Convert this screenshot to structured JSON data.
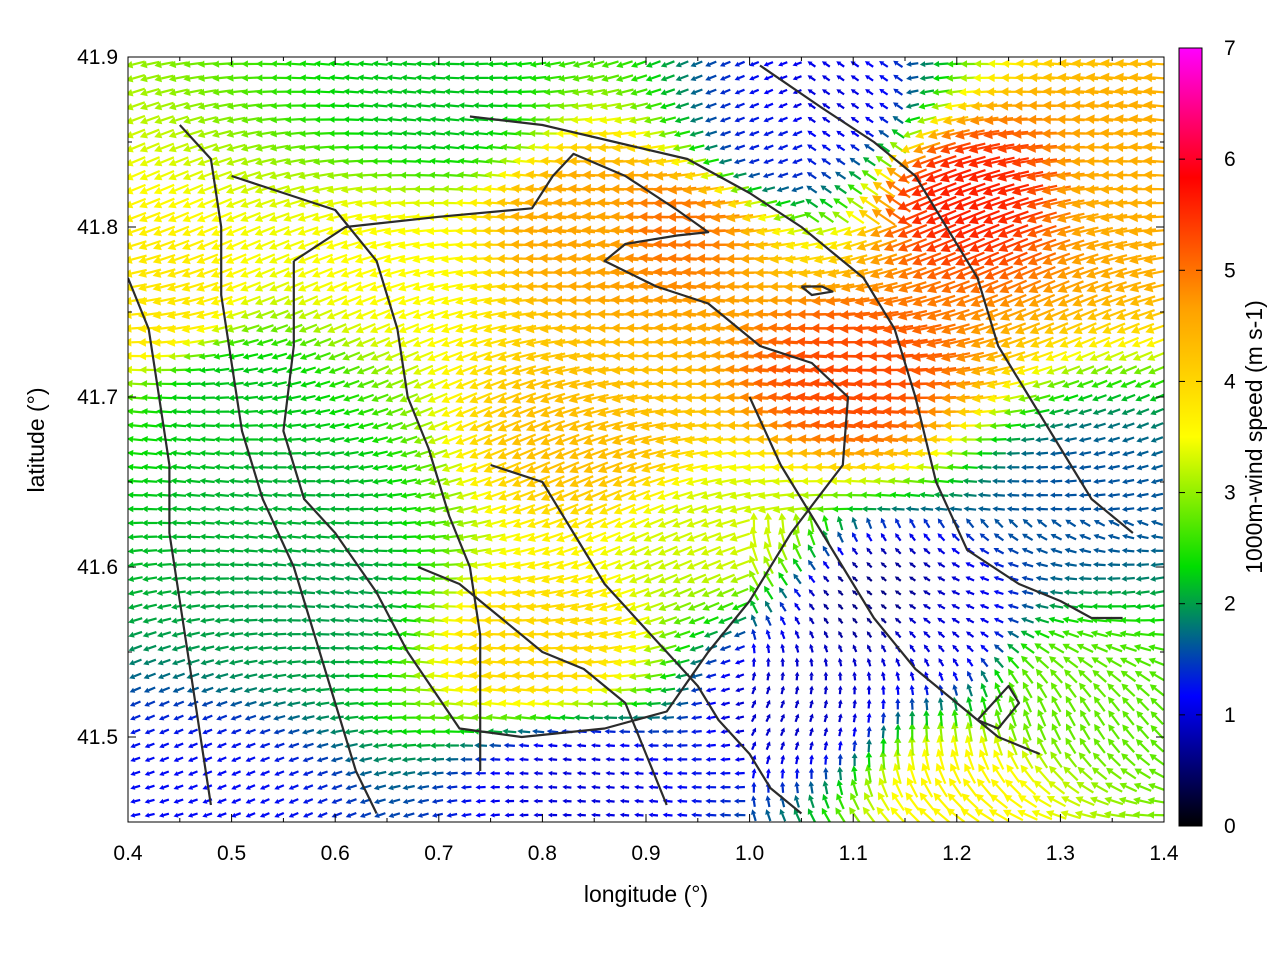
{
  "chart_data": {
    "type": "vector-field",
    "xlabel": "longitude (°)",
    "ylabel": "latitude (°)",
    "xlim": [
      0.4,
      1.4
    ],
    "ylim": [
      41.45,
      41.9
    ],
    "xticks": [
      "0.4",
      "0.5",
      "0.6",
      "0.7",
      "0.8",
      "0.9",
      "1.0",
      "1.1",
      "1.2",
      "1.3",
      "1.4"
    ],
    "yticks": [
      "41.5",
      "41.6",
      "41.7",
      "41.8",
      "41.9"
    ],
    "colorbar": {
      "label": "1000m-wind speed (m s-1)",
      "range": [
        0,
        7
      ],
      "ticks": [
        "0",
        "1",
        "2",
        "3",
        "4",
        "5",
        "6",
        "7"
      ],
      "stops": [
        "#000000",
        "#0000ff",
        "#00dd00",
        "#ffff00",
        "#ffa000",
        "#ff0000",
        "#ff00ff"
      ]
    },
    "speed_centers": [
      {
        "lon": 0.85,
        "lat": 41.8,
        "speed": 4.6
      },
      {
        "lon": 0.93,
        "lat": 41.8,
        "speed": 5.0
      },
      {
        "lon": 1.1,
        "lat": 41.71,
        "speed": 5.3
      },
      {
        "lon": 1.21,
        "lat": 41.82,
        "speed": 5.6
      },
      {
        "lon": 0.8,
        "lat": 41.55,
        "speed": 4.0
      },
      {
        "lon": 0.85,
        "lat": 41.68,
        "speed": 4.3
      },
      {
        "lon": 0.65,
        "lat": 41.78,
        "speed": 3.5
      },
      {
        "lon": 1.38,
        "lat": 41.82,
        "speed": 4.5
      },
      {
        "lon": 1.07,
        "lat": 41.87,
        "speed": 1.0
      },
      {
        "lon": 1.03,
        "lat": 41.85,
        "speed": 1.3
      },
      {
        "lon": 1.12,
        "lat": 41.58,
        "speed": 0.6
      },
      {
        "lon": 1.05,
        "lat": 41.52,
        "speed": 0.9
      },
      {
        "lon": 1.18,
        "lat": 41.56,
        "speed": 1.0
      },
      {
        "lon": 0.83,
        "lat": 41.475,
        "speed": 1.0
      },
      {
        "lon": 0.47,
        "lat": 41.46,
        "speed": 1.2
      },
      {
        "lon": 0.58,
        "lat": 41.58,
        "speed": 2.0
      },
      {
        "lon": 0.5,
        "lat": 41.7,
        "speed": 2.2
      },
      {
        "lon": 0.55,
        "lat": 41.64,
        "speed": 2.1
      },
      {
        "lon": 0.7,
        "lat": 41.87,
        "speed": 2.2
      },
      {
        "lon": 1.32,
        "lat": 41.64,
        "speed": 1.6
      },
      {
        "lon": 1.3,
        "lat": 41.53,
        "speed": 2.8
      },
      {
        "lon": 1.2,
        "lat": 41.47,
        "speed": 3.6
      },
      {
        "lon": 0.42,
        "lat": 41.75,
        "speed": 3.8
      },
      {
        "lon": 0.98,
        "lat": 41.62,
        "speed": 3.3
      }
    ],
    "contours": [
      [
        [
          0.56,
          41.78
        ],
        [
          0.61,
          41.8
        ],
        [
          0.7,
          41.806
        ],
        [
          0.79,
          41.811
        ],
        [
          0.81,
          41.83
        ],
        [
          0.83,
          41.843
        ],
        [
          0.88,
          41.83
        ],
        [
          0.93,
          41.81
        ],
        [
          0.96,
          41.797
        ],
        [
          0.93,
          41.795
        ],
        [
          0.88,
          41.79
        ],
        [
          0.86,
          41.78
        ],
        [
          0.91,
          41.765
        ],
        [
          0.96,
          41.755
        ],
        [
          1.01,
          41.73
        ],
        [
          1.06,
          41.72
        ],
        [
          1.095,
          41.7
        ],
        [
          1.09,
          41.66
        ],
        [
          1.04,
          41.62
        ],
        [
          1.0,
          41.58
        ],
        [
          0.96,
          41.55
        ],
        [
          0.92,
          41.515
        ],
        [
          0.86,
          41.505
        ],
        [
          0.78,
          41.5
        ],
        [
          0.72,
          41.505
        ],
        [
          0.67,
          41.55
        ],
        [
          0.64,
          41.585
        ],
        [
          0.6,
          41.62
        ],
        [
          0.57,
          41.64
        ],
        [
          0.55,
          41.68
        ],
        [
          0.56,
          41.73
        ],
        [
          0.56,
          41.78
        ]
      ],
      [
        [
          0.73,
          41.865
        ],
        [
          0.8,
          41.86
        ],
        [
          0.87,
          41.85
        ],
        [
          0.94,
          41.84
        ],
        [
          1.0,
          41.82
        ],
        [
          1.05,
          41.8
        ],
        [
          1.11,
          41.77
        ],
        [
          1.14,
          41.74
        ],
        [
          1.16,
          41.7
        ],
        [
          1.18,
          41.65
        ],
        [
          1.21,
          41.61
        ],
        [
          1.26,
          41.59
        ],
        [
          1.3,
          41.58
        ],
        [
          1.33,
          41.57
        ],
        [
          1.36,
          41.57
        ]
      ],
      [
        [
          1.0,
          41.7
        ],
        [
          1.03,
          41.66
        ],
        [
          1.06,
          41.63
        ],
        [
          1.09,
          41.6
        ],
        [
          1.12,
          41.57
        ],
        [
          1.16,
          41.54
        ],
        [
          1.2,
          41.52
        ],
        [
          1.24,
          41.5
        ],
        [
          1.28,
          41.49
        ]
      ],
      [
        [
          0.75,
          41.66
        ],
        [
          0.8,
          41.65
        ],
        [
          0.83,
          41.62
        ],
        [
          0.86,
          41.59
        ],
        [
          0.89,
          41.57
        ],
        [
          0.92,
          41.55
        ],
        [
          0.95,
          41.53
        ],
        [
          0.97,
          41.51
        ],
        [
          1.0,
          41.49
        ],
        [
          1.02,
          41.47
        ],
        [
          1.05,
          41.455
        ]
      ],
      [
        [
          0.5,
          41.83
        ],
        [
          0.55,
          41.82
        ],
        [
          0.6,
          41.81
        ],
        [
          0.64,
          41.78
        ],
        [
          0.66,
          41.74
        ],
        [
          0.67,
          41.7
        ],
        [
          0.69,
          41.67
        ],
        [
          0.71,
          41.63
        ],
        [
          0.73,
          41.6
        ],
        [
          0.74,
          41.56
        ],
        [
          0.74,
          41.52
        ],
        [
          0.74,
          41.48
        ]
      ],
      [
        [
          0.45,
          41.86
        ],
        [
          0.48,
          41.84
        ],
        [
          0.49,
          41.8
        ],
        [
          0.49,
          41.76
        ],
        [
          0.5,
          41.72
        ],
        [
          0.51,
          41.68
        ],
        [
          0.53,
          41.64
        ],
        [
          0.56,
          41.6
        ],
        [
          0.58,
          41.56
        ],
        [
          0.6,
          41.52
        ],
        [
          0.62,
          41.48
        ],
        [
          0.64,
          41.455
        ]
      ],
      [
        [
          0.4,
          41.77
        ],
        [
          0.42,
          41.74
        ],
        [
          0.43,
          41.7
        ],
        [
          0.44,
          41.66
        ],
        [
          0.44,
          41.62
        ],
        [
          0.45,
          41.58
        ],
        [
          0.46,
          41.54
        ],
        [
          0.47,
          41.5
        ],
        [
          0.48,
          41.46
        ]
      ],
      [
        [
          1.01,
          41.895
        ],
        [
          1.07,
          41.87
        ],
        [
          1.12,
          41.85
        ],
        [
          1.16,
          41.83
        ],
        [
          1.19,
          41.8
        ],
        [
          1.22,
          41.77
        ],
        [
          1.24,
          41.73
        ],
        [
          1.27,
          41.7
        ],
        [
          1.3,
          41.67
        ],
        [
          1.33,
          41.64
        ],
        [
          1.37,
          41.62
        ]
      ],
      [
        [
          0.68,
          41.6
        ],
        [
          0.72,
          41.59
        ],
        [
          0.76,
          41.57
        ],
        [
          0.8,
          41.55
        ],
        [
          0.84,
          41.54
        ],
        [
          0.88,
          41.52
        ],
        [
          0.9,
          41.49
        ],
        [
          0.92,
          41.46
        ]
      ],
      [
        [
          1.22,
          41.51
        ],
        [
          1.25,
          41.53
        ],
        [
          1.26,
          41.52
        ],
        [
          1.24,
          41.505
        ],
        [
          1.22,
          41.51
        ]
      ],
      [
        [
          1.05,
          41.765
        ],
        [
          1.07,
          41.765
        ],
        [
          1.08,
          41.762
        ],
        [
          1.06,
          41.76
        ],
        [
          1.05,
          41.765
        ]
      ]
    ]
  }
}
